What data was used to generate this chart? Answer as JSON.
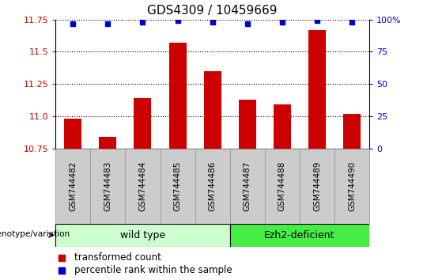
{
  "title": "GDS4309 / 10459669",
  "samples": [
    "GSM744482",
    "GSM744483",
    "GSM744484",
    "GSM744485",
    "GSM744486",
    "GSM744487",
    "GSM744488",
    "GSM744489",
    "GSM744490"
  ],
  "transformed_counts": [
    10.98,
    10.84,
    11.14,
    11.57,
    11.35,
    11.13,
    11.09,
    11.67,
    11.02
  ],
  "percentile_ranks": [
    97,
    97,
    98,
    99,
    98,
    97,
    98,
    99,
    98
  ],
  "ylim_left": [
    10.75,
    11.75
  ],
  "ylim_right": [
    0,
    100
  ],
  "yticks_left": [
    10.75,
    11.0,
    11.25,
    11.5,
    11.75
  ],
  "yticks_right": [
    0,
    25,
    50,
    75,
    100
  ],
  "bar_color": "#cc0000",
  "dot_color": "#0000cc",
  "wild_type_label": "wild type",
  "ezh2_label": "Ezh2-deficient",
  "genotype_label": "genotype/variation",
  "legend_bar_label": "transformed count",
  "legend_dot_label": "percentile rank within the sample",
  "wild_type_color": "#ccffcc",
  "ezh2_color": "#44ee44",
  "tick_label_color_left": "#cc0000",
  "tick_label_color_right": "#0000cc",
  "xtick_bg_color": "#cccccc",
  "xtick_edge_color": "#999999",
  "grid_linestyle": "dotted",
  "grid_linewidth": 0.8,
  "bar_width": 0.5,
  "dot_percentile_display": 97.5
}
